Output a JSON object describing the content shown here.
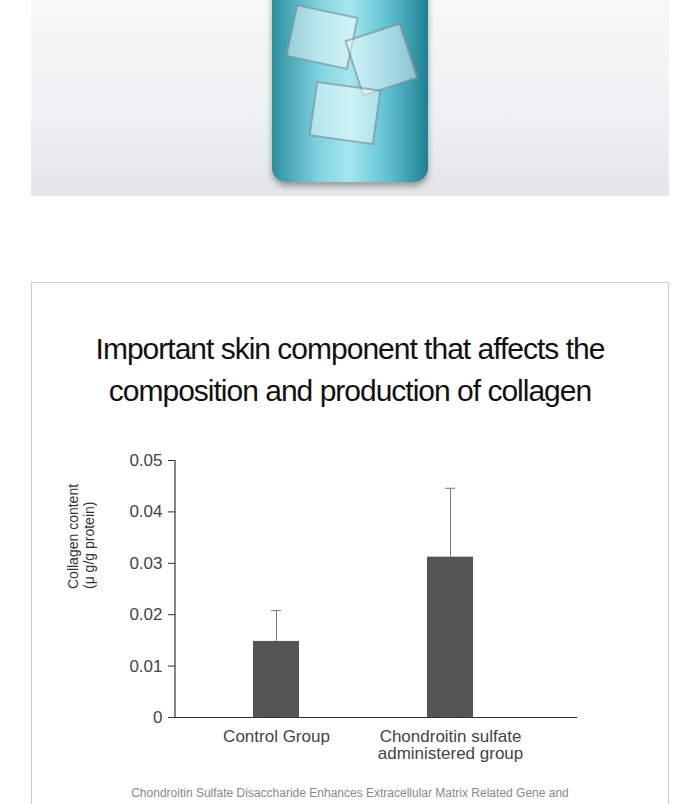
{
  "chart_data": {
    "type": "bar",
    "title": "Important skin component that affects the composition and production of collagen",
    "categories": [
      "Control Group",
      "Chondroitin sulfate administered group"
    ],
    "values": [
      0.0148,
      0.0312
    ],
    "errors": [
      0.006,
      0.0134
    ],
    "color": "#555555",
    "y_label": "Collagen content (μ g/g protein)",
    "ylim": [
      0,
      0.05
    ],
    "yticks": [
      0,
      0.01,
      0.02,
      0.03,
      0.04,
      0.05
    ],
    "grid": false,
    "caption": "Chondroitin Sulfate Disaccharide Enhances Extracellular Matrix Related Gene and"
  }
}
